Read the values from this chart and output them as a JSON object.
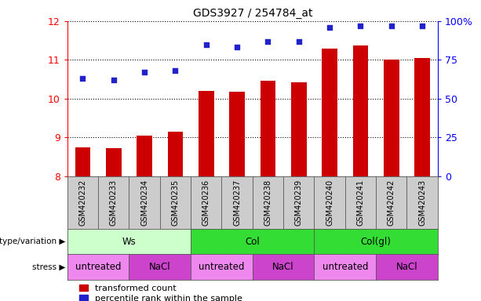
{
  "title": "GDS3927 / 254784_at",
  "samples": [
    "GSM420232",
    "GSM420233",
    "GSM420234",
    "GSM420235",
    "GSM420236",
    "GSM420237",
    "GSM420238",
    "GSM420239",
    "GSM420240",
    "GSM420241",
    "GSM420242",
    "GSM420243"
  ],
  "bar_values": [
    8.75,
    8.72,
    9.05,
    9.15,
    10.2,
    10.18,
    10.47,
    10.43,
    11.28,
    11.38,
    11.0,
    11.05
  ],
  "scatter_values": [
    63,
    62,
    67,
    68,
    85,
    83,
    87,
    87,
    96,
    97,
    97,
    97
  ],
  "ylim": [
    8,
    12
  ],
  "yticks_left": [
    8,
    9,
    10,
    11,
    12
  ],
  "yticks_right": [
    0,
    25,
    50,
    75,
    100
  ],
  "bar_color": "#cc0000",
  "scatter_color": "#2222cc",
  "bar_bottom": 8,
  "genotype_groups": [
    {
      "label": "Ws",
      "start": 0,
      "end": 4,
      "color": "#ccffcc"
    },
    {
      "label": "Col",
      "start": 4,
      "end": 8,
      "color": "#33dd33"
    },
    {
      "label": "Col(gl)",
      "start": 8,
      "end": 12,
      "color": "#33dd33"
    }
  ],
  "stress_groups": [
    {
      "label": "untreated",
      "start": 0,
      "end": 2,
      "color": "#ee88ee"
    },
    {
      "label": "NaCl",
      "start": 2,
      "end": 4,
      "color": "#cc44cc"
    },
    {
      "label": "untreated",
      "start": 4,
      "end": 6,
      "color": "#ee88ee"
    },
    {
      "label": "NaCl",
      "start": 6,
      "end": 8,
      "color": "#cc44cc"
    },
    {
      "label": "untreated",
      "start": 8,
      "end": 10,
      "color": "#ee88ee"
    },
    {
      "label": "NaCl",
      "start": 10,
      "end": 12,
      "color": "#cc44cc"
    }
  ],
  "legend_red": "transformed count",
  "legend_blue": "percentile rank within the sample",
  "label_genotype": "genotype/variation",
  "label_stress": "stress",
  "sample_bg": "#cccccc",
  "fig_bg": "#ffffff"
}
